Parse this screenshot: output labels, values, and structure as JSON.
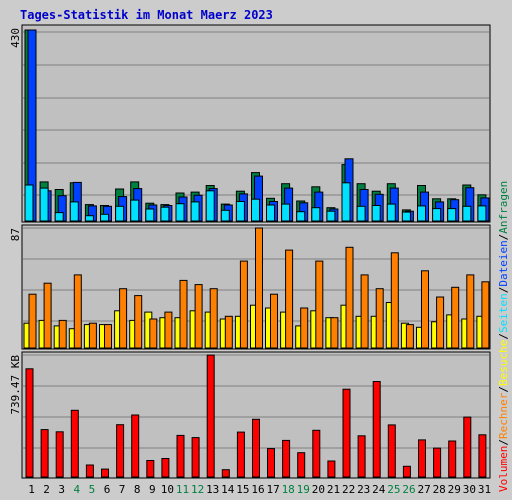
{
  "colors": {
    "frame_bg": "#cccccc",
    "panel_bg": "#c0c0c0",
    "title": "#0000cc",
    "grid": "#808080",
    "anfragen": "#008040",
    "dateien": "#0040ff",
    "seiten": "#00e0ff",
    "besuche": "#ffff00",
    "rechner": "#ff8000",
    "volumen": "#ff0000",
    "axis_label": "#000000",
    "weekend_label": "#008040"
  },
  "chart_data": {
    "title": "Tages-Statistik im Monat Maerz 2023",
    "type": "bar",
    "x": [
      "1",
      "2",
      "3",
      "4",
      "5",
      "6",
      "7",
      "8",
      "9",
      "10",
      "11",
      "12",
      "13",
      "14",
      "15",
      "16",
      "17",
      "18",
      "19",
      "20",
      "21",
      "22",
      "23",
      "24",
      "25",
      "26",
      "27",
      "28",
      "29",
      "30",
      "31"
    ],
    "weekend_days": [
      "4",
      "5",
      "11",
      "12",
      "18",
      "19",
      "25",
      "26"
    ],
    "panels": [
      {
        "ymax_label": "430",
        "ymax": 430,
        "series": [
          {
            "name": "Anfragen",
            "color_key": "anfragen",
            "values": [
              430,
              88,
              71,
              86,
              37,
              35,
              72,
              88,
              40,
              37,
              63,
              65,
              80,
              38,
              67,
              109,
              51,
              84,
              45,
              77,
              30,
              127,
              84,
              67,
              84,
              25,
              80,
              50,
              50,
              81,
              59
            ]
          },
          {
            "name": "Dateien",
            "color_key": "dateien",
            "values": [
              430,
              68,
              57,
              87,
              34,
              33,
              55,
              73,
              36,
              35,
              54,
              58,
              73,
              36,
              61,
              101,
              44,
              74,
              41,
              65,
              27,
              140,
              71,
              60,
              74,
              22,
              65,
              43,
              48,
              75,
              52
            ]
          },
          {
            "name": "Seiten",
            "color_key": "seiten",
            "values": [
              81,
              74,
              19,
              43,
              12,
              15,
              33,
              47,
              27,
              31,
              39,
              43,
              68,
              24,
              44,
              49,
              36,
              38,
              21,
              30,
              22,
              86,
              33,
              35,
              38,
              20,
              34,
              28,
              28,
              33,
              34
            ]
          }
        ]
      },
      {
        "ymax_label": "87",
        "ymax": 87,
        "series": [
          {
            "name": "Besuche",
            "color_key": "besuche",
            "values": [
              18,
              20,
              16,
              14,
              17,
              17,
              27,
              20,
              26,
              22,
              22,
              27,
              26,
              21,
              23,
              31,
              29,
              26,
              16,
              27,
              22,
              31,
              23,
              23,
              33,
              18,
              15,
              19,
              24,
              21,
              23
            ]
          },
          {
            "name": "Rechner",
            "color_key": "rechner",
            "values": [
              39,
              47,
              20,
              53,
              18,
              17,
              43,
              38,
              21,
              26,
              49,
              46,
              43,
              23,
              63,
              87,
              39,
              71,
              29,
              63,
              22,
              73,
              53,
              43,
              69,
              17,
              56,
              37,
              44,
              53,
              48
            ]
          }
        ]
      },
      {
        "ymax_label": "739.47 KB",
        "ymax": 739.47,
        "series": [
          {
            "name": "Volumen",
            "color_key": "volumen",
            "values": [
              656,
              287,
              274,
              404,
              73,
              48,
              317,
              376,
              100,
              112,
              252,
              239,
              739,
              44,
              272,
              350,
              172,
              222,
              147,
              283,
              97,
              532,
              250,
              579,
              316,
              65,
              225,
              175,
              218,
              363,
              256
            ]
          }
        ]
      }
    ],
    "right_legend": [
      {
        "label": "Volumen",
        "color_key": "volumen"
      },
      {
        "label": "/",
        "color_key": "axis_label"
      },
      {
        "label": "Rechner",
        "color_key": "rechner"
      },
      {
        "label": "/",
        "color_key": "axis_label"
      },
      {
        "label": "Besuche",
        "color_key": "besuche"
      },
      {
        "label": "/",
        "color_key": "axis_label"
      },
      {
        "label": "Seiten",
        "color_key": "seiten"
      },
      {
        "label": "/",
        "color_key": "axis_label"
      },
      {
        "label": "Dateien",
        "color_key": "dateien"
      },
      {
        "label": "/",
        "color_key": "axis_label"
      },
      {
        "label": "Anfragen",
        "color_key": "anfragen"
      }
    ]
  }
}
